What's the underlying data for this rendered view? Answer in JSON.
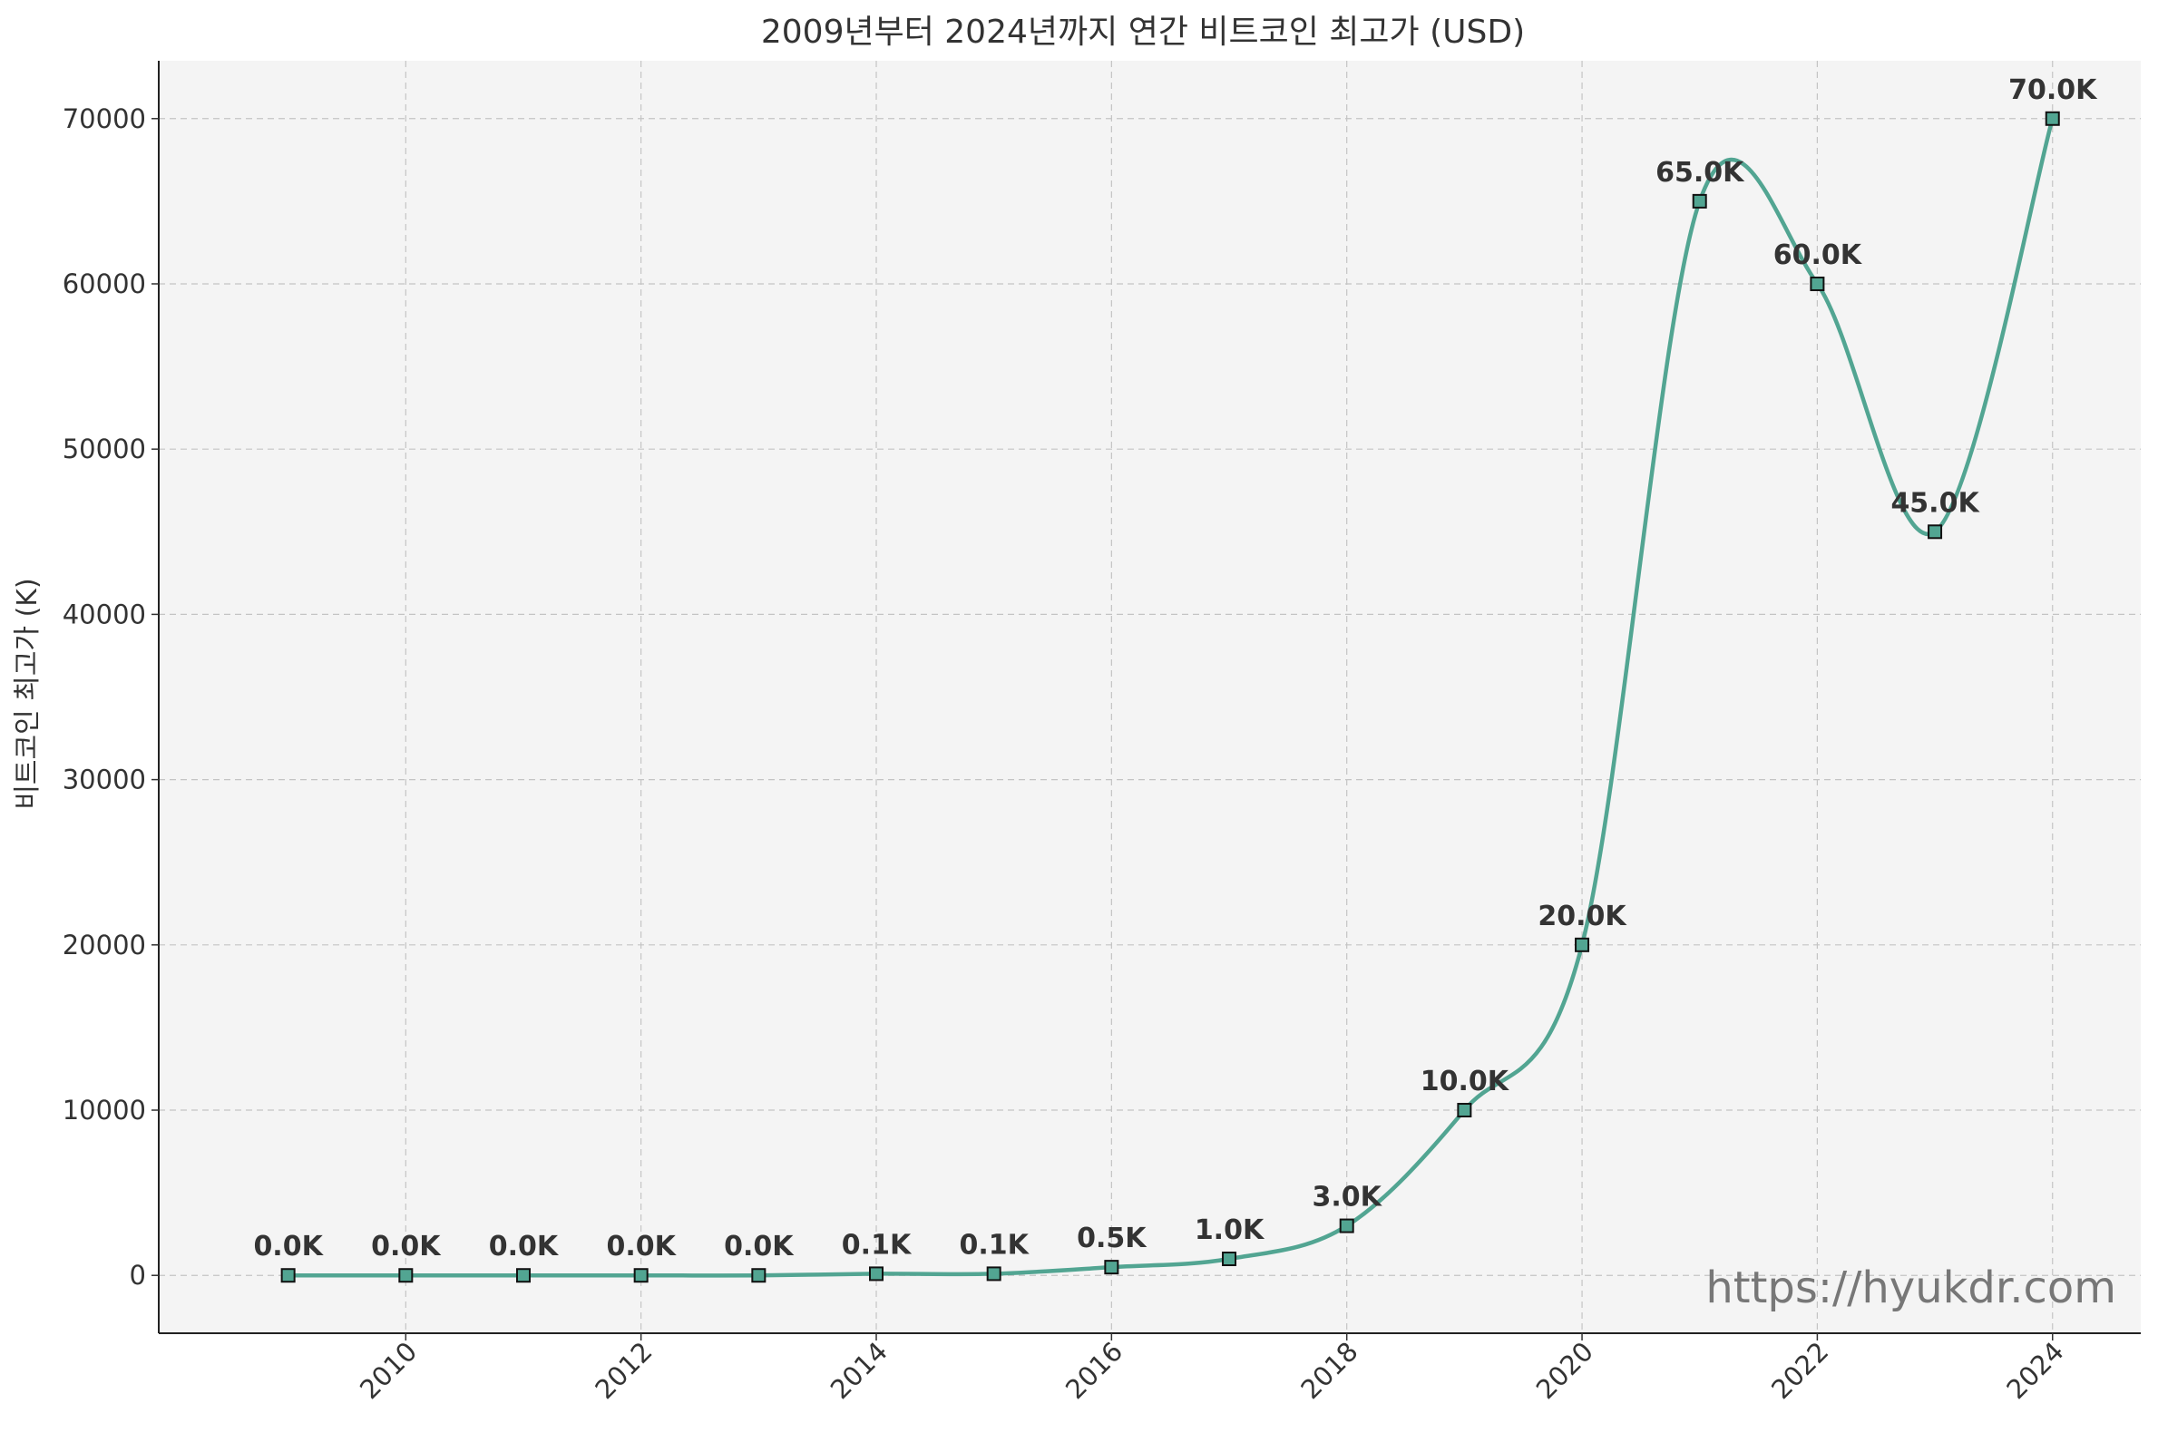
{
  "chart_data": {
    "type": "line",
    "title": "2009년부터 2024년까지 연간 비트코인 최고가 (USD)",
    "xlabel": "",
    "ylabel": "비트코인 최고가 (K)",
    "x": [
      2009,
      2010,
      2011,
      2012,
      2013,
      2014,
      2015,
      2016,
      2017,
      2018,
      2019,
      2020,
      2021,
      2022,
      2023,
      2024
    ],
    "values": [
      0,
      0,
      0,
      0,
      0,
      100,
      100,
      500,
      1000,
      3000,
      10000,
      20000,
      65000,
      60000,
      45000,
      70000
    ],
    "data_labels": [
      "0.0K",
      "0.0K",
      "0.0K",
      "0.0K",
      "0.0K",
      "0.1K",
      "0.1K",
      "0.5K",
      "1.0K",
      "3.0K",
      "10.0K",
      "20.0K",
      "65.0K",
      "60.0K",
      "45.0K",
      "70.0K"
    ],
    "x_ticks": [
      2010,
      2012,
      2014,
      2016,
      2018,
      2020,
      2022,
      2024
    ],
    "y_ticks": [
      0,
      10000,
      20000,
      30000,
      40000,
      50000,
      60000,
      70000
    ],
    "xlim": [
      2007.9,
      2024.75
    ],
    "ylim": [
      -3500,
      73500
    ],
    "grid": true,
    "line_color": "#52a592",
    "marker": "square",
    "background": "#f4f4f4"
  },
  "watermark": "https://hyukdr.com"
}
